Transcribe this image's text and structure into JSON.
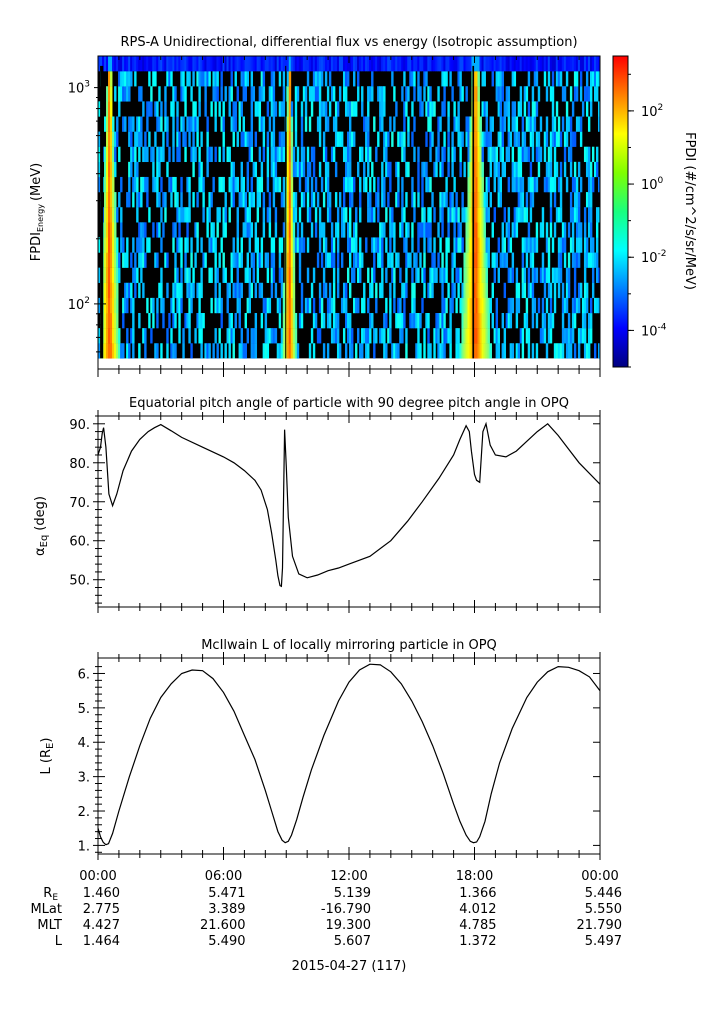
{
  "panels": {
    "spectrogram": {
      "title": "RPS-A Unidirectional, differential flux vs energy (Isotropic assumption)",
      "ylabel_main": "FPDI",
      "ylabel_sub": "Energy",
      "ylabel_unit": "(MeV)",
      "yticks": [
        {
          "label_base": "10",
          "label_exp": "3",
          "value": 1000
        },
        {
          "label_base": "10",
          "label_exp": "2",
          "value": 100
        }
      ],
      "colorbar_label": "FPDI (#/cm^2/s/sr/MeV)",
      "colorbar_ticks": [
        {
          "base": "10",
          "exp": "2",
          "value": 2
        },
        {
          "base": "10",
          "exp": "0",
          "value": 0
        },
        {
          "base": "10",
          "exp": "-2",
          "value": -2
        },
        {
          "base": "10",
          "exp": "-4",
          "value": -4
        }
      ]
    },
    "pitch": {
      "title": "Equatorial pitch angle of particle with 90 degree pitch angle in OPQ",
      "ylabel_alpha": "α",
      "ylabel_sub": "Eq",
      "ylabel_unit": "(deg)",
      "yticks": [
        "90.",
        "80.",
        "70.",
        "60.",
        "50."
      ]
    },
    "lshell": {
      "title": "McIlwain L of locally mirroring particle in OPQ",
      "ylabel": "L (R",
      "ylabel_sub": "E",
      "ylabel_close": ")",
      "yticks": [
        "6.",
        "5.",
        "4.",
        "3.",
        "2.",
        "1."
      ]
    }
  },
  "xaxis": {
    "ticks": [
      "00:00",
      "06:00",
      "12:00",
      "18:00",
      "00:00"
    ],
    "date_label": "2015-04-27 (117)"
  },
  "ephemeris": {
    "rows": [
      {
        "label": "R",
        "label_sub": "E",
        "values": [
          "1.460",
          "5.471",
          "5.139",
          "1.366",
          "5.446"
        ]
      },
      {
        "label": "MLat",
        "label_sub": "",
        "values": [
          "2.775",
          "3.389",
          "-16.790",
          "4.012",
          "5.550"
        ]
      },
      {
        "label": "MLT",
        "label_sub": "",
        "values": [
          "4.427",
          "21.600",
          "19.300",
          "4.785",
          "21.790"
        ]
      },
      {
        "label": "L",
        "label_sub": "",
        "values": [
          "1.464",
          "5.490",
          "5.607",
          "1.372",
          "5.497"
        ]
      }
    ]
  },
  "chart_data": [
    {
      "type": "heatmap",
      "title": "RPS-A Unidirectional, differential flux vs energy (Isotropic assumption)",
      "x_range_hours": [
        0,
        24
      ],
      "ylabel": "FPDI Energy (MeV)",
      "y_scale": "log",
      "ylim": [
        50,
        1400
      ],
      "colorbar": "FPDI (#/cm^2/s/sr/MeV)",
      "color_scale": "log",
      "clim_log10": [
        -5,
        3.5
      ],
      "bright_bands_hours": [
        [
          0.3,
          1.0
        ],
        [
          9.0,
          9.4
        ],
        [
          17.4,
          18.6
        ]
      ]
    },
    {
      "type": "line",
      "title": "Equatorial pitch angle of particle with 90 degree pitch angle in OPQ",
      "xlabel": "",
      "ylabel": "α Eq (deg)",
      "xlim": [
        0,
        24
      ],
      "ylim": [
        43,
        92
      ],
      "x": [
        0,
        0.12,
        0.2,
        0.27,
        0.38,
        0.52,
        0.7,
        0.9,
        1.2,
        1.6,
        2.0,
        2.4,
        2.7,
        3.0,
        3.5,
        4.0,
        5.0,
        6.0,
        6.5,
        7.0,
        7.5,
        7.8,
        8.1,
        8.3,
        8.5,
        8.6,
        8.7,
        8.77,
        8.82,
        8.87,
        8.92,
        9.0,
        9.1,
        9.3,
        9.6,
        10.0,
        10.5,
        11.0,
        11.5,
        12.0,
        13.0,
        14.0,
        14.8,
        15.5,
        16.3,
        17.0,
        17.3,
        17.6,
        17.75,
        17.85,
        18.0,
        18.1,
        18.25,
        18.4,
        18.55,
        18.75,
        19.0,
        19.5,
        20.0,
        20.5,
        21.0,
        21.5,
        22.0,
        22.5,
        23.0,
        24.0
      ],
      "y": [
        82,
        84,
        87.5,
        89,
        84,
        72,
        69,
        72,
        78,
        83,
        86,
        88,
        89,
        89.8,
        88.2,
        86.5,
        84,
        81.5,
        80,
        78,
        75.5,
        73,
        68,
        62,
        55,
        51,
        48.5,
        48.3,
        53,
        70,
        88.5,
        79,
        66,
        56,
        51.5,
        50.5,
        51.2,
        52.3,
        53,
        54,
        56,
        60,
        65,
        70,
        76,
        82,
        86,
        89.5,
        88,
        83,
        77,
        75.5,
        75,
        88,
        90,
        84.5,
        82,
        81.5,
        83,
        85.5,
        88,
        90,
        87,
        83.5,
        80,
        74.5
      ]
    },
    {
      "type": "line",
      "title": "McIlwain L of locally mirroring particle in OPQ",
      "xlabel": "",
      "ylabel": "L (R E)",
      "xlim": [
        0,
        24
      ],
      "ylim": [
        0.75,
        6.45
      ],
      "x": [
        0,
        0.12,
        0.25,
        0.38,
        0.5,
        0.7,
        1.0,
        1.5,
        2.0,
        2.5,
        3.0,
        3.5,
        4.0,
        4.5,
        5.0,
        5.5,
        6.0,
        6.5,
        7.0,
        7.5,
        8.0,
        8.3,
        8.6,
        8.8,
        8.95,
        9.1,
        9.25,
        9.5,
        9.8,
        10.2,
        10.8,
        11.5,
        12.0,
        12.5,
        13.0,
        13.5,
        14.0,
        14.5,
        15.0,
        15.5,
        16.0,
        16.5,
        17.0,
        17.3,
        17.6,
        17.8,
        17.95,
        18.1,
        18.25,
        18.5,
        18.8,
        19.2,
        19.8,
        20.5,
        21.0,
        21.5,
        22.0,
        22.5,
        23.0,
        23.5,
        24.0
      ],
      "y": [
        1.5,
        1.25,
        1.09,
        1.02,
        1.05,
        1.35,
        2.0,
        3.0,
        3.9,
        4.7,
        5.3,
        5.7,
        6.0,
        6.1,
        6.08,
        5.85,
        5.45,
        4.9,
        4.2,
        3.5,
        2.6,
        2.0,
        1.4,
        1.15,
        1.08,
        1.12,
        1.3,
        1.75,
        2.4,
        3.2,
        4.2,
        5.2,
        5.75,
        6.1,
        6.27,
        6.25,
        6.05,
        5.7,
        5.2,
        4.6,
        3.9,
        3.1,
        2.2,
        1.7,
        1.3,
        1.12,
        1.08,
        1.1,
        1.25,
        1.7,
        2.5,
        3.4,
        4.4,
        5.3,
        5.75,
        6.05,
        6.2,
        6.18,
        6.08,
        5.9,
        5.5
      ]
    }
  ],
  "colors": {
    "line": "#000000",
    "fill_dark": "#000000"
  }
}
